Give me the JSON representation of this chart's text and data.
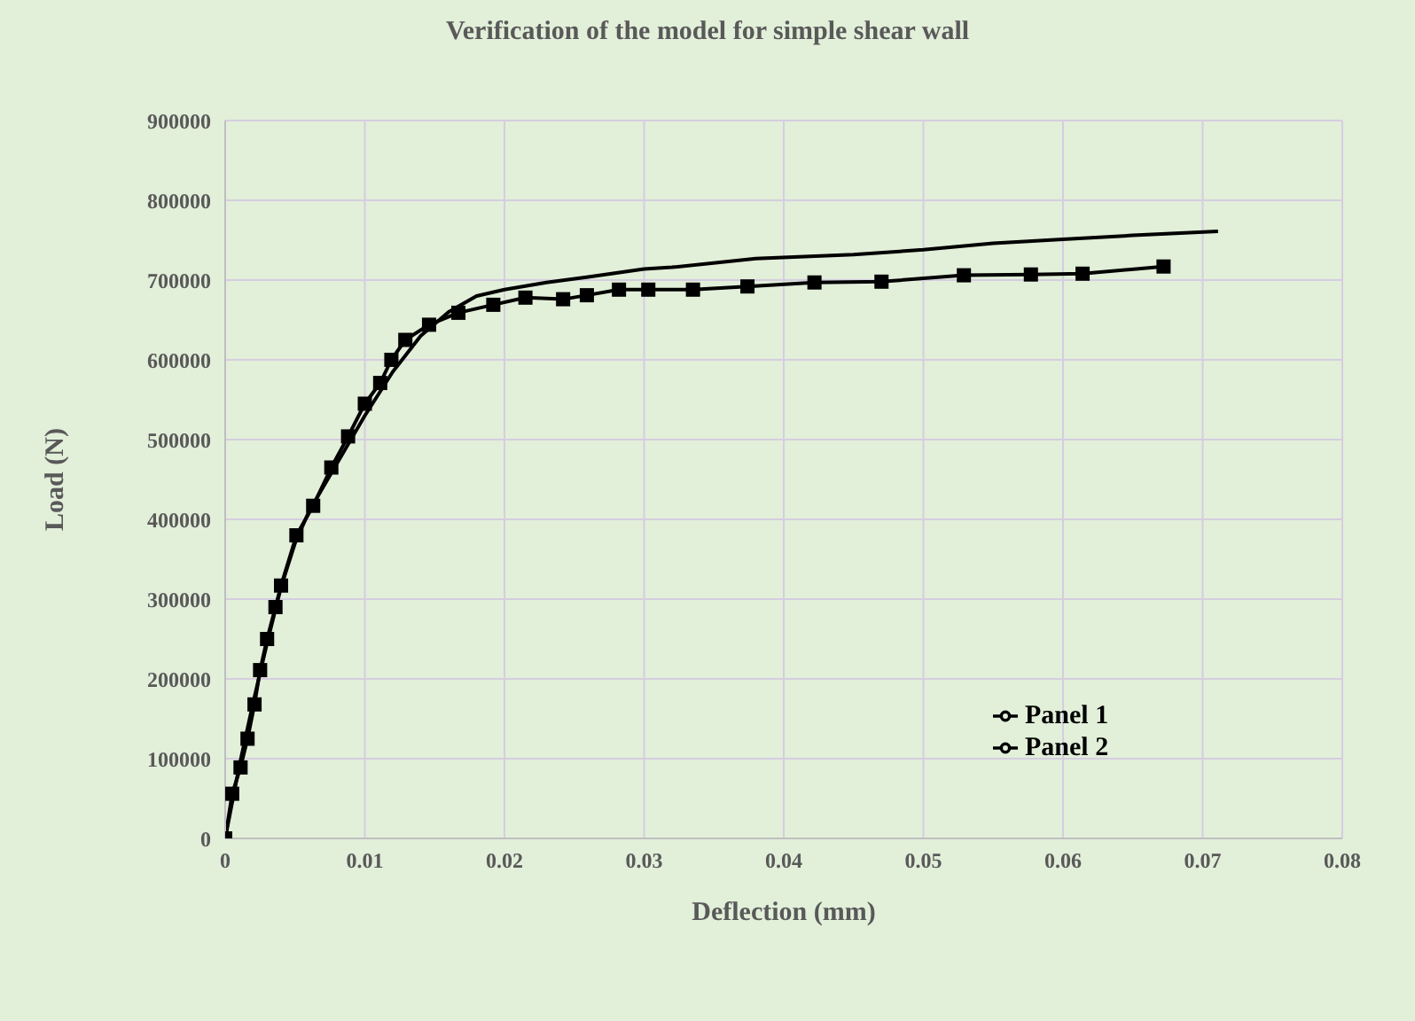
{
  "chart_data": {
    "type": "line",
    "title": "Verification of the model for simple shear wall",
    "xlabel": "Deflection (mm)",
    "ylabel": "Load (N)",
    "xlim": [
      0,
      0.08
    ],
    "xticks": [
      0,
      0.01,
      0.02,
      0.03,
      0.04,
      0.05,
      0.06,
      0.07,
      0.08
    ],
    "ylim": [
      0,
      900000
    ],
    "yticks": [
      0,
      100000,
      200000,
      300000,
      400000,
      500000,
      600000,
      700000,
      800000,
      900000
    ],
    "grid": true,
    "legend": "right",
    "series": [
      {
        "name": "Panel 1",
        "color": "#000000",
        "marker": "square",
        "x": [
          0,
          0.0005,
          0.0011,
          0.0016,
          0.0021,
          0.0025,
          0.003,
          0.0036,
          0.004,
          0.0051,
          0.0063,
          0.0076,
          0.0088,
          0.01,
          0.0111,
          0.0119,
          0.0129,
          0.0146,
          0.0167,
          0.0192,
          0.0215,
          0.0242,
          0.0259,
          0.0282,
          0.0303,
          0.0335,
          0.0374,
          0.0422,
          0.047,
          0.0529,
          0.0577,
          0.0614,
          0.0672
        ],
        "values": [
          0,
          56000,
          89000,
          125000,
          168000,
          211000,
          250000,
          290000,
          317000,
          380000,
          417000,
          465000,
          504000,
          545000,
          571000,
          600000,
          625000,
          644000,
          659000,
          669000,
          678000,
          676000,
          681000,
          688000,
          688000,
          688000,
          692000,
          697000,
          698000,
          706000,
          707000,
          708000,
          717000
        ]
      },
      {
        "name": "Panel 2",
        "color": "#000000",
        "marker": "none",
        "x": [
          0,
          0.001,
          0.002,
          0.003,
          0.004,
          0.005,
          0.006,
          0.008,
          0.01,
          0.012,
          0.014,
          0.016,
          0.018,
          0.02,
          0.023,
          0.026,
          0.03,
          0.032,
          0.038,
          0.045,
          0.05,
          0.055,
          0.06,
          0.065,
          0.0711
        ],
        "values": [
          0,
          90000,
          170000,
          245000,
          315000,
          370000,
          410000,
          470000,
          530000,
          585000,
          630000,
          660000,
          680000,
          688000,
          697000,
          704000,
          714000,
          716000,
          727000,
          732000,
          738000,
          746000,
          751000,
          756000,
          761000
        ]
      }
    ]
  }
}
